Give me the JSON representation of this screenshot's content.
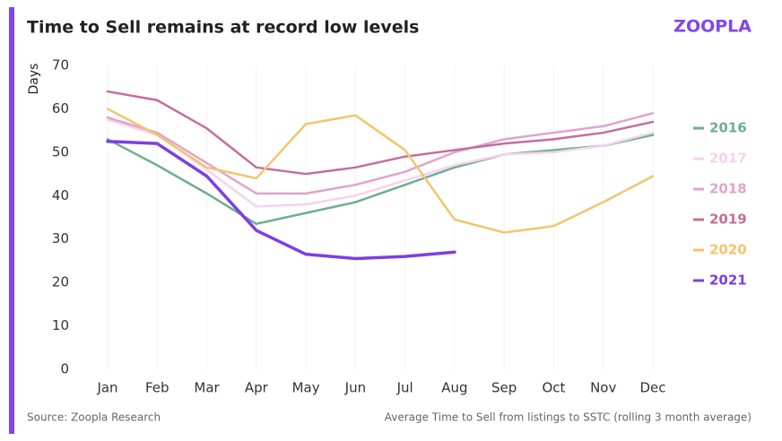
{
  "chart_data": {
    "type": "line",
    "title": "Time to Sell remains at record low levels",
    "logo": "ZOOPLA",
    "y_label": "Days",
    "source": "Source: Zoopla Research",
    "note": "Average Time to Sell from listings to SSTC (rolling 3 month average)",
    "categories": [
      "Jan",
      "Feb",
      "Mar",
      "Apr",
      "May",
      "Jun",
      "Jul",
      "Aug",
      "Sep",
      "Oct",
      "Nov",
      "Dec"
    ],
    "series": [
      {
        "name": "2016",
        "color": "#6fae8f",
        "values": [
          53,
          47,
          40.5,
          33.5,
          36,
          38.5,
          42.5,
          46.5,
          49.5,
          50.5,
          51.5,
          54
        ]
      },
      {
        "name": "2017",
        "color": "#f6d2f0",
        "values": [
          57.5,
          54,
          46,
          37.5,
          38,
          40,
          43.5,
          47,
          49.5,
          50,
          51.5,
          54.5
        ]
      },
      {
        "name": "2018",
        "color": "#e0a3cf",
        "values": [
          58,
          54.5,
          47.5,
          40.5,
          40.5,
          42.5,
          45.5,
          50,
          53,
          54.5,
          56,
          59
        ]
      },
      {
        "name": "2019",
        "color": "#c46d9d",
        "values": [
          64,
          62,
          55.5,
          46.5,
          45,
          46.5,
          49,
          50.5,
          52,
          53,
          54.5,
          57
        ]
      },
      {
        "name": "2020",
        "color": "#f2c56c",
        "values": [
          60,
          54,
          46.5,
          44,
          56.5,
          58.5,
          50.5,
          34.5,
          31.5,
          33,
          38.5,
          44.5
        ]
      },
      {
        "name": "2021",
        "color": "#7b3fe4",
        "values": [
          52.5,
          52,
          44.5,
          32,
          26.5,
          25.5,
          26,
          27,
          null,
          null,
          null,
          null
        ]
      }
    ],
    "ylim": [
      0,
      70
    ],
    "yticks": [
      0,
      10,
      20,
      30,
      40,
      50,
      60,
      70
    ],
    "grid": false,
    "legend": "right"
  }
}
